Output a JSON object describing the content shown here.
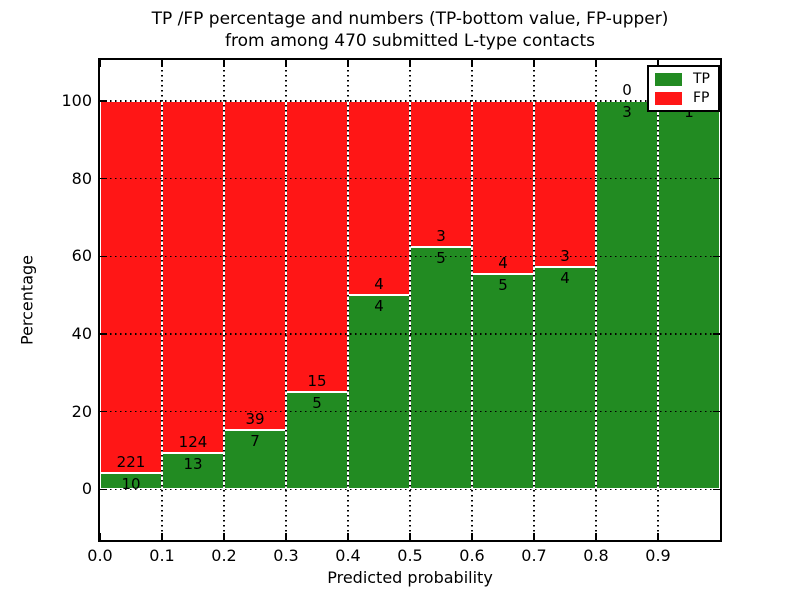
{
  "title": {
    "line1": "TP /FP percentage and numbers (TP-bottom value, FP-upper)",
    "line2": "from among 470 submitted L-type contacts"
  },
  "axes": {
    "xlabel": "Predicted probability",
    "ylabel": "Percentage",
    "x_tick_labels": [
      "0.0",
      "0.1",
      "0.2",
      "0.3",
      "0.4",
      "0.5",
      "0.6",
      "0.7",
      "0.8",
      "0.9"
    ],
    "y_tick_labels": [
      "0",
      "20",
      "40",
      "60",
      "80",
      "100"
    ],
    "y_tick_values": [
      0,
      20,
      40,
      60,
      80,
      100
    ],
    "xlim": [
      0.0,
      1.0
    ],
    "ylim": [
      -13,
      110.5
    ],
    "grid": "dotted"
  },
  "legend": {
    "entries": [
      {
        "label": "TP",
        "color_key": "tp"
      },
      {
        "label": "FP",
        "color_key": "fp"
      }
    ],
    "position": "upper right"
  },
  "colors": {
    "tp": "#228b22",
    "fp": "#ff1616",
    "grid": "#000000",
    "background": "#ffffff"
  },
  "chart_data": {
    "type": "bar",
    "stacked": true,
    "normalized_to_percent": true,
    "title": "TP /FP percentage and numbers (TP-bottom value, FP-upper) from among 470 submitted L-type contacts",
    "xlabel": "Predicted probability",
    "ylabel": "Percentage",
    "total_contacts": 470,
    "bin_width": 0.1,
    "bin_starts": [
      0.0,
      0.1,
      0.2,
      0.3,
      0.4,
      0.5,
      0.6,
      0.7,
      0.8,
      0.9
    ],
    "series": [
      {
        "name": "TP",
        "counts": [
          10,
          13,
          7,
          5,
          4,
          5,
          5,
          4,
          3,
          1
        ]
      },
      {
        "name": "FP",
        "counts": [
          221,
          124,
          39,
          15,
          4,
          3,
          4,
          3,
          0,
          0
        ]
      }
    ],
    "bars": [
      {
        "bin": "0.0-0.1",
        "tp": 10,
        "fp": 221,
        "tp_pct": 4.33
      },
      {
        "bin": "0.1-0.2",
        "tp": 13,
        "fp": 124,
        "tp_pct": 9.49
      },
      {
        "bin": "0.2-0.3",
        "tp": 7,
        "fp": 39,
        "tp_pct": 15.22
      },
      {
        "bin": "0.3-0.4",
        "tp": 5,
        "fp": 15,
        "tp_pct": 25.0
      },
      {
        "bin": "0.4-0.5",
        "tp": 4,
        "fp": 4,
        "tp_pct": 50.0
      },
      {
        "bin": "0.5-0.6",
        "tp": 5,
        "fp": 3,
        "tp_pct": 62.5
      },
      {
        "bin": "0.6-0.7",
        "tp": 5,
        "fp": 4,
        "tp_pct": 55.56
      },
      {
        "bin": "0.7-0.8",
        "tp": 4,
        "fp": 3,
        "tp_pct": 57.14
      },
      {
        "bin": "0.8-0.9",
        "tp": 3,
        "fp": 0,
        "tp_pct": 100.0
      },
      {
        "bin": "0.9-1.0",
        "tp": 1,
        "fp": 0,
        "tp_pct": 100.0,
        "fp_label_hidden": true
      }
    ]
  }
}
